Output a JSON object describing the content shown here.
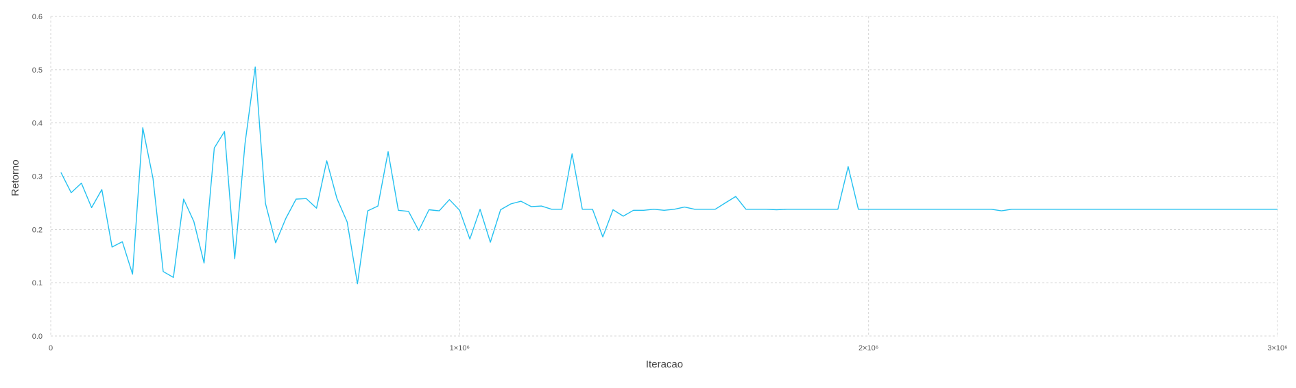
{
  "chart_data": {
    "type": "line",
    "title": "",
    "xlabel": "Iteracao",
    "ylabel": "Retorno",
    "xlim": [
      0,
      3000000
    ],
    "ylim": [
      0,
      0.6
    ],
    "grid": true,
    "line_color": "#22c0f0",
    "x_ticks": [
      {
        "value": 0,
        "label": "0"
      },
      {
        "value": 1000000,
        "label": "1×10⁶"
      },
      {
        "value": 2000000,
        "label": "2×10⁶"
      },
      {
        "value": 3000000,
        "label": "3×10⁶"
      }
    ],
    "y_ticks": [
      {
        "value": 0,
        "label": "0.0"
      },
      {
        "value": 0.1,
        "label": "0.1"
      },
      {
        "value": 0.2,
        "label": "0.2"
      },
      {
        "value": 0.3,
        "label": "0.3"
      },
      {
        "value": 0.4,
        "label": "0.4"
      },
      {
        "value": 0.5,
        "label": "0.5"
      },
      {
        "value": 0.6,
        "label": "0.6"
      }
    ],
    "series": [
      {
        "x": [
          25000,
          50000,
          75000,
          100000,
          125000,
          150000,
          175000,
          200000,
          225000,
          250000,
          275000,
          300000,
          325000,
          350000,
          375000,
          400000,
          425000,
          450000,
          475000,
          500000,
          525000,
          550000,
          575000,
          600000,
          625000,
          650000,
          675000,
          700000,
          725000,
          750000,
          775000,
          800000,
          825000,
          850000,
          875000,
          900000,
          925000,
          950000,
          975000,
          1000000,
          1025000,
          1050000,
          1075000,
          1100000,
          1125000,
          1150000,
          1175000,
          1200000,
          1225000,
          1250000,
          1275000,
          1300000,
          1325000,
          1350000,
          1375000,
          1400000,
          1425000,
          1450000,
          1475000,
          1500000,
          1525000,
          1550000,
          1575000,
          1600000,
          1625000,
          1650000,
          1675000,
          1700000,
          1725000,
          1750000,
          1775000,
          1800000,
          1825000,
          1850000,
          1875000,
          1900000,
          1925000,
          1950000,
          1975000,
          2000000,
          2100000,
          2200000,
          2300000,
          2325000,
          2350000,
          2400000,
          2500000,
          2600000,
          2700000,
          2800000,
          2900000,
          3000000
        ],
        "y": [
          0.307,
          0.269,
          0.287,
          0.241,
          0.275,
          0.167,
          0.177,
          0.116,
          0.391,
          0.296,
          0.121,
          0.11,
          0.257,
          0.215,
          0.137,
          0.353,
          0.384,
          0.145,
          0.361,
          0.505,
          0.249,
          0.175,
          0.221,
          0.257,
          0.258,
          0.24,
          0.329,
          0.258,
          0.214,
          0.098,
          0.235,
          0.244,
          0.346,
          0.236,
          0.234,
          0.198,
          0.237,
          0.235,
          0.256,
          0.236,
          0.182,
          0.238,
          0.176,
          0.237,
          0.248,
          0.253,
          0.243,
          0.244,
          0.238,
          0.238,
          0.342,
          0.238,
          0.238,
          0.186,
          0.237,
          0.225,
          0.236,
          0.236,
          0.238,
          0.236,
          0.238,
          0.242,
          0.238,
          0.238,
          0.238,
          0.25,
          0.262,
          0.238,
          0.238,
          0.238,
          0.237,
          0.238,
          0.238,
          0.238,
          0.238,
          0.238,
          0.238,
          0.318,
          0.238,
          0.238,
          0.238,
          0.238,
          0.238,
          0.235,
          0.238,
          0.238,
          0.238,
          0.238,
          0.238,
          0.238,
          0.238,
          0.238
        ]
      }
    ]
  }
}
